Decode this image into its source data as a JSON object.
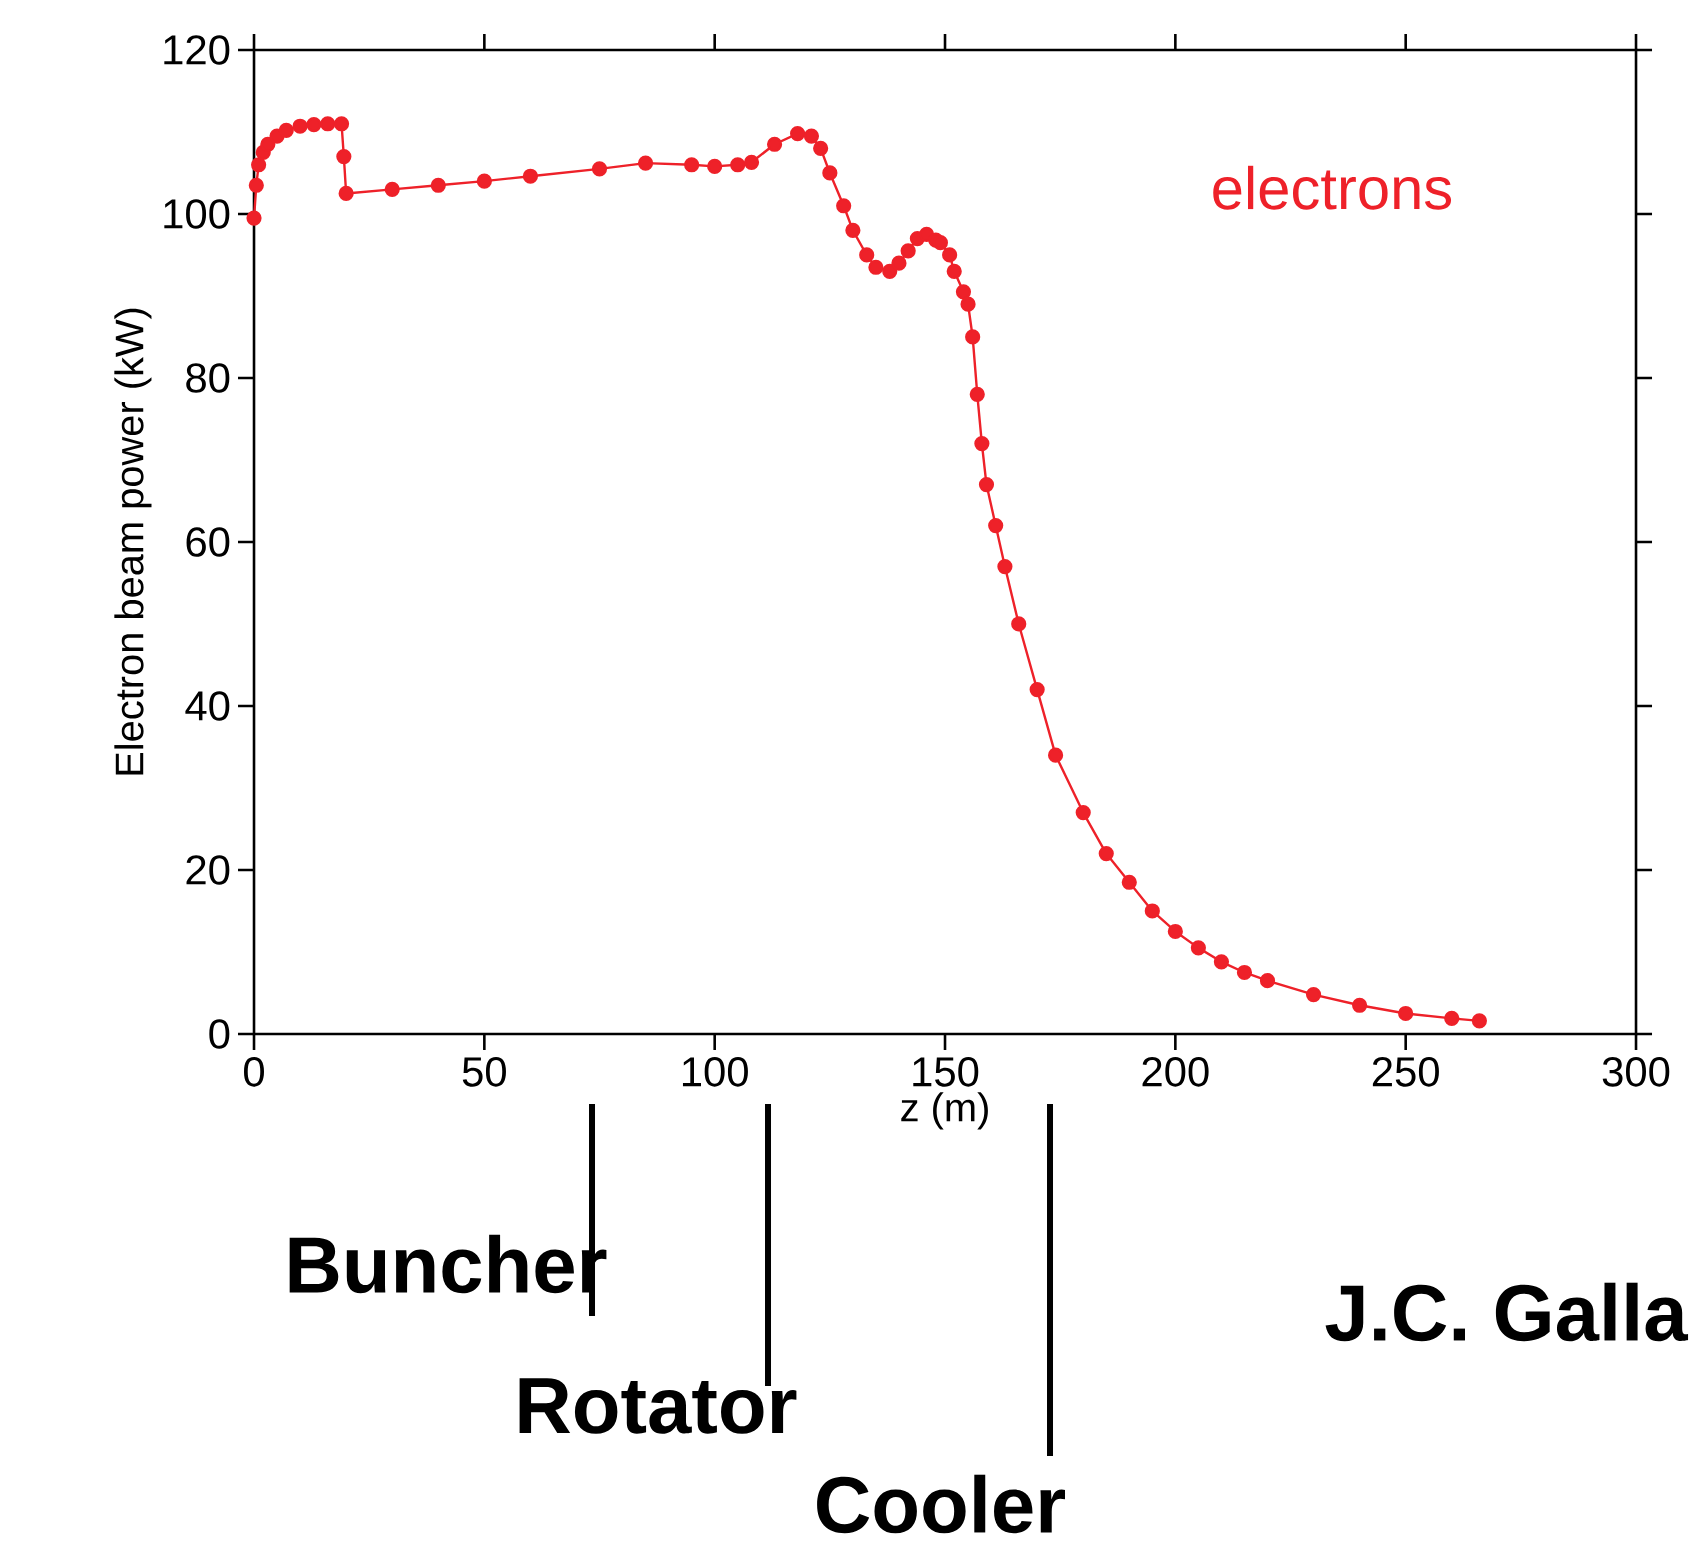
{
  "chart_data": {
    "type": "line",
    "xlabel": "z (m)",
    "ylabel": "Electron beam power (kW)",
    "xlim": [
      0,
      300
    ],
    "ylim": [
      0,
      120
    ],
    "xticks": [
      0,
      50,
      100,
      150,
      200,
      250,
      300
    ],
    "yticks": [
      0,
      20,
      40,
      60,
      80,
      100,
      120
    ],
    "marker": "circle",
    "line_style": "solid",
    "grid": false,
    "legend": false,
    "series": [
      {
        "name": "electrons",
        "color": "#ee2129",
        "x": [
          0,
          0.5,
          1,
          2,
          3,
          5,
          7,
          10,
          13,
          16,
          19,
          19.5,
          20,
          30,
          40,
          50,
          60,
          75,
          85,
          95,
          100,
          105,
          108,
          113,
          118,
          121,
          123,
          125,
          128,
          130,
          133,
          135,
          138,
          140,
          142,
          144,
          146,
          148,
          149,
          151,
          152,
          154,
          155,
          156,
          157,
          158,
          159,
          161,
          163,
          166,
          170,
          174,
          180,
          185,
          190,
          195,
          200,
          205,
          210,
          215,
          220,
          230,
          240,
          250,
          260,
          266
        ],
        "values": [
          99.5,
          103.5,
          106,
          107.5,
          108.5,
          109.5,
          110.2,
          110.7,
          110.9,
          111,
          111,
          107,
          102.5,
          103,
          103.5,
          104,
          104.6,
          105.5,
          106.2,
          106,
          105.8,
          106,
          106.3,
          108.5,
          109.8,
          109.5,
          108,
          105,
          101,
          98,
          95,
          93.5,
          93,
          94,
          95.5,
          97,
          97.5,
          96.8,
          96.5,
          95,
          93,
          90.5,
          89,
          85,
          78,
          72,
          67,
          62,
          57,
          50,
          42,
          34,
          27,
          22,
          18.5,
          15,
          12.5,
          10.5,
          8.8,
          7.5,
          6.5,
          4.8,
          3.5,
          2.5,
          1.9,
          1.6
        ]
      }
    ],
    "annotations": [
      "Buncher",
      "Rotator",
      "Cooler",
      "J.C. Galla"
    ]
  }
}
